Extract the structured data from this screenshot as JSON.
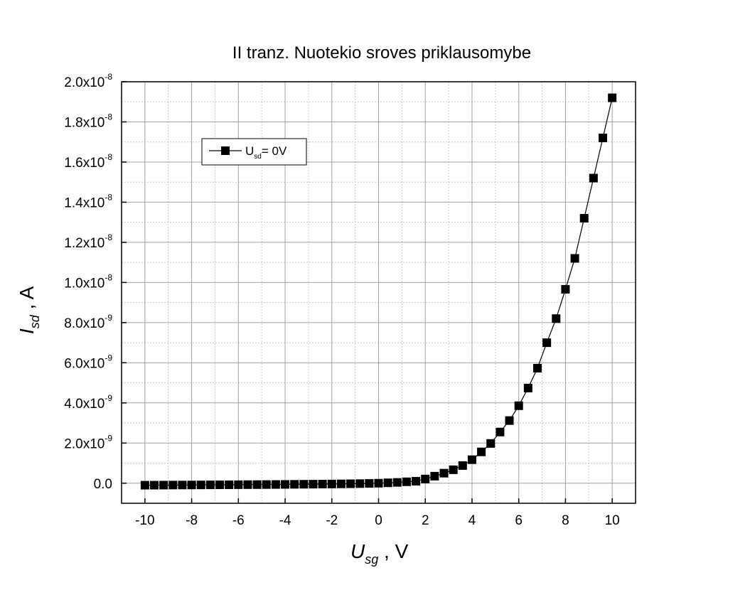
{
  "chart_data": {
    "type": "line",
    "title": "II tranz. Nuotekio sroves priklausomybe",
    "xlabel": {
      "symbol": "U",
      "subscript": "sg",
      "unit": " , V"
    },
    "ylabel": {
      "symbol": "I",
      "subscript": "sd",
      "unit": " , A"
    },
    "xlim": [
      -11,
      11
    ],
    "xticks": [
      -10,
      -8,
      -6,
      -4,
      -2,
      0,
      2,
      4,
      6,
      8,
      10
    ],
    "ylim": [
      -1e-09,
      2e-08
    ],
    "yticks": [
      {
        "value": 0,
        "label": "0.0"
      },
      {
        "value": 2e-09,
        "label": "2.0x10",
        "exponent": "-9"
      },
      {
        "value": 4e-09,
        "label": "4.0x10",
        "exponent": "-9"
      },
      {
        "value": 6e-09,
        "label": "6.0x10",
        "exponent": "-9"
      },
      {
        "value": 8e-09,
        "label": "8.0x10",
        "exponent": "-9"
      },
      {
        "value": 1e-08,
        "label": "1.0x10",
        "exponent": "-8"
      },
      {
        "value": 1.2e-08,
        "label": "1.2x10",
        "exponent": "-8"
      },
      {
        "value": 1.4e-08,
        "label": "1.4x10",
        "exponent": "-8"
      },
      {
        "value": 1.6e-08,
        "label": "1.6x10",
        "exponent": "-8"
      },
      {
        "value": 1.8e-08,
        "label": "1.8x10",
        "exponent": "-8"
      },
      {
        "value": 2e-08,
        "label": "2.0x10",
        "exponent": "-8"
      }
    ],
    "grid": true,
    "legend": "upper left",
    "x": [
      -10,
      -9.6,
      -9.2,
      -8.8,
      -8.4,
      -8,
      -7.6,
      -7.2,
      -6.8,
      -6.4,
      -6,
      -5.6,
      -5.2,
      -4.8,
      -4.4,
      -4,
      -3.6,
      -3.2,
      -2.8,
      -2.4,
      -2,
      -1.6,
      -1.2,
      -0.8,
      -0.4,
      0,
      0.4,
      0.8,
      1.2,
      1.6,
      2,
      2.4,
      2.8,
      3.2,
      3.6,
      4,
      4.4,
      4.8,
      5.2,
      5.6,
      6,
      6.4,
      6.8,
      7.2,
      7.6,
      8,
      8.4,
      8.8,
      9.2,
      9.6,
      10
    ],
    "series": [
      {
        "name": "U",
        "name_subscript": "sd",
        "name_suffix": "= 0V",
        "color": "#000000",
        "values": [
          -1e-10,
          -9.8e-11,
          -9.5e-11,
          -9.2e-11,
          -9e-11,
          -8.8e-11,
          -8.5e-11,
          -8.2e-11,
          -8e-11,
          -7.8e-11,
          -7.5e-11,
          -7.2e-11,
          -7e-11,
          -6.7e-11,
          -6.4e-11,
          -6e-11,
          -5.6e-11,
          -5.2e-11,
          -4.8e-11,
          -4.4e-11,
          -4e-11,
          -3.4e-11,
          -2.8e-11,
          -2e-11,
          -1e-11,
          0,
          2e-11,
          4e-11,
          7e-11,
          1e-10,
          2.1e-10,
          3.5e-10,
          5e-10,
          6.7e-10,
          8.8e-10,
          1.17e-09,
          1.56e-09,
          1.98e-09,
          2.55e-09,
          3.12e-09,
          3.86e-09,
          4.74e-09,
          5.73e-09,
          7e-09,
          8.2e-09,
          9.66e-09,
          1.12e-08,
          1.32e-08,
          1.52e-08,
          1.72e-08,
          1.92e-08
        ]
      }
    ]
  }
}
